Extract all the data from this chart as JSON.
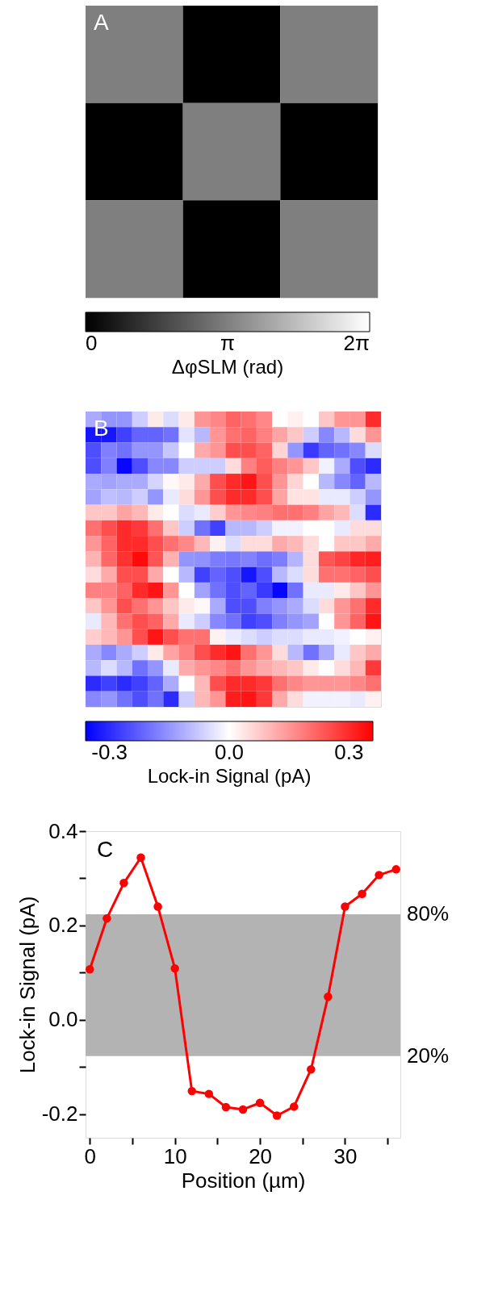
{
  "chart_data": [
    {
      "type": "heatmap",
      "annotations": [
        "A"
      ],
      "tick_labels": false,
      "categories": [
        null,
        null,
        null
      ],
      "y_categories": [
        null,
        null,
        null
      ],
      "cells": [
        [
          3.14,
          0,
          3.14
        ],
        [
          0,
          3.14,
          0
        ],
        [
          3.14,
          0,
          3.14
        ]
      ],
      "colors": [
        "#000000",
        "#ffffff"
      ],
      "clim": [
        0,
        6.283
      ],
      "cticks": [
        {
          "value": 0,
          "label": "0"
        },
        {
          "value": 3.1416,
          "label": "π"
        },
        {
          "value": 6.283,
          "label": "2π"
        }
      ],
      "clabel": "ΔφSLM (rad)"
    },
    {
      "type": "heatmap",
      "annotations": [
        "B"
      ],
      "tick_labels": false,
      "categories": [
        null,
        null,
        null,
        null,
        null,
        null,
        null,
        null,
        null,
        null,
        null,
        null,
        null,
        null,
        null,
        null,
        null,
        null,
        null
      ],
      "y_categories": [
        null,
        null,
        null,
        null,
        null,
        null,
        null,
        null,
        null,
        null,
        null,
        null,
        null,
        null,
        null,
        null,
        null,
        null,
        null
      ],
      "cells": [
        [
          -0.12,
          -0.15,
          -0.15,
          -0.07,
          0.03,
          -0.05,
          0.03,
          0.15,
          0.17,
          0.22,
          0.2,
          0.17,
          0,
          0.02,
          0,
          0.08,
          0.15,
          0.15,
          0.3
        ],
        [
          -0.33,
          -0.33,
          -0.27,
          -0.22,
          -0.22,
          -0.2,
          -0.04,
          -0.1,
          0.15,
          0.2,
          0.22,
          0.18,
          0.13,
          0.08,
          -0.07,
          -0.17,
          -0.1,
          0.05,
          0.15
        ],
        [
          -0.25,
          -0.18,
          -0.2,
          -0.15,
          -0.15,
          -0.08,
          0,
          0.12,
          0.15,
          0.25,
          0.25,
          0.22,
          0.06,
          -0.15,
          -0.28,
          -0.22,
          -0.2,
          -0.17,
          -0.05
        ],
        [
          -0.25,
          -0.18,
          -0.35,
          -0.25,
          -0.17,
          -0.17,
          -0.07,
          -0.07,
          -0.07,
          0.05,
          0.18,
          0.23,
          0.18,
          0.15,
          0.08,
          -0.02,
          -0.12,
          -0.25,
          -0.3
        ],
        [
          -0.12,
          -0.13,
          -0.12,
          -0.12,
          -0.06,
          0.01,
          0.03,
          0.12,
          0.25,
          0.3,
          0.33,
          0.25,
          0.15,
          0.06,
          0,
          -0.1,
          -0.17,
          -0.22,
          -0.1
        ],
        [
          -0.13,
          -0.09,
          -0.1,
          -0.07,
          -0.15,
          -0.03,
          0.05,
          0.15,
          0.25,
          0.3,
          0.3,
          0.25,
          0.13,
          0.04,
          0.04,
          -0.03,
          -0.03,
          -0.07,
          -0.15
        ],
        [
          0.08,
          0.08,
          0.13,
          0.1,
          0.03,
          0,
          -0.05,
          -0.03,
          0.07,
          0.15,
          0.17,
          0.18,
          0.2,
          0.2,
          0.18,
          0.13,
          0.1,
          -0.05,
          -0.3
        ],
        [
          0.2,
          0.25,
          0.3,
          0.28,
          0.2,
          0.08,
          -0.07,
          -0.2,
          -0.27,
          -0.1,
          -0.1,
          -0.07,
          -0.02,
          -0.02,
          0,
          0,
          -0.03,
          0.05,
          0.05
        ],
        [
          0.15,
          0.22,
          0.3,
          0.3,
          0.25,
          0.2,
          0.17,
          0.1,
          0.02,
          -0.05,
          0.05,
          0.05,
          0.12,
          0.1,
          0.05,
          0,
          0.08,
          0.08,
          0.12
        ],
        [
          0.107,
          0.215,
          0.29,
          0.344,
          0.24,
          0.109,
          -0.151,
          -0.157,
          -0.185,
          -0.19,
          -0.176,
          -0.203,
          -0.184,
          -0.105,
          0.049,
          0.24,
          0.267,
          0.307,
          0.319
        ],
        [
          0.05,
          0.12,
          0.25,
          0.25,
          0.12,
          0,
          -0.1,
          -0.27,
          -0.22,
          -0.25,
          -0.33,
          -0.25,
          -0.1,
          -0.05,
          0.05,
          0.2,
          0.2,
          0.22,
          0.25
        ],
        [
          0.18,
          0.18,
          0.22,
          0.3,
          0.33,
          0.15,
          0,
          -0.13,
          -0.2,
          -0.25,
          -0.22,
          -0.28,
          -0.35,
          -0.2,
          -0.03,
          -0.03,
          0.03,
          0.08,
          0.15
        ],
        [
          0.08,
          0.15,
          0.25,
          0.2,
          0.15,
          0.08,
          0.03,
          0.01,
          -0.12,
          -0.25,
          -0.25,
          -0.18,
          -0.15,
          -0.12,
          -0.05,
          0.05,
          0.15,
          0.2,
          0.3
        ],
        [
          -0.03,
          0.1,
          0.2,
          0.25,
          0.22,
          0.12,
          -0.03,
          -0.07,
          -0.17,
          -0.2,
          -0.27,
          -0.25,
          -0.18,
          -0.15,
          -0.13,
          0,
          0.15,
          0.22,
          0.33
        ],
        [
          0.07,
          0.1,
          0.15,
          0.25,
          0.33,
          0.25,
          0.2,
          0.2,
          0.02,
          -0.03,
          -0.05,
          -0.07,
          -0.05,
          -0.05,
          -0.03,
          -0.03,
          -0.02,
          0,
          0.02
        ],
        [
          -0.12,
          -0.17,
          -0.12,
          -0.07,
          0.03,
          0.13,
          0.18,
          0.25,
          0.3,
          0.33,
          0.2,
          0.15,
          0.05,
          -0.1,
          -0.2,
          -0.12,
          -0.03,
          0.08,
          0.12
        ],
        [
          -0.1,
          -0.05,
          -0.1,
          -0.2,
          -0.15,
          -0.03,
          0.12,
          0.15,
          0.17,
          0.2,
          0.15,
          0.12,
          0.1,
          0.08,
          0.03,
          0,
          0.05,
          0.1,
          0.28
        ],
        [
          -0.3,
          -0.27,
          -0.3,
          -0.27,
          -0.22,
          -0.12,
          0,
          0.1,
          0.25,
          0.3,
          0.3,
          0.28,
          0.2,
          0.17,
          0.15,
          0.15,
          0.15,
          0.17,
          0.2
        ],
        [
          -0.17,
          -0.15,
          -0.2,
          -0.25,
          -0.2,
          -0.3,
          -0.07,
          0.1,
          0.15,
          0.32,
          0.33,
          0.28,
          0.12,
          0.05,
          -0.02,
          -0.02,
          -0.02,
          -0.03,
          0.02
        ]
      ],
      "colors": [
        "#0000ff",
        "#ffffff",
        "#ff0000"
      ],
      "clim": [
        -0.36,
        0.36
      ],
      "cticks": [
        {
          "value": -0.3,
          "label": "-0.3"
        },
        {
          "value": 0,
          "label": "0.0"
        },
        {
          "value": 0.3,
          "label": "0.3"
        }
      ],
      "clabel": "Lock-in Signal (pA)"
    },
    {
      "type": "line",
      "annotations": [
        "C",
        {
          "text": "80%",
          "x": 36.5,
          "y": 0.224
        },
        {
          "text": "20%",
          "x": 36.5,
          "y": -0.077
        }
      ],
      "xlabel": "Position (µm)",
      "ylabel": "Lock-in Signal (pA)",
      "marker": "circle",
      "grid": false,
      "x": [
        0,
        2,
        4,
        6,
        8,
        10,
        12,
        14,
        16,
        18,
        20,
        22,
        24,
        26,
        28,
        30,
        32,
        34,
        36
      ],
      "series": [
        {
          "color": "#ff0000",
          "values": [
            0.107,
            0.215,
            0.29,
            0.344,
            0.24,
            0.109,
            -0.151,
            -0.157,
            -0.185,
            -0.19,
            -0.176,
            -0.203,
            -0.184,
            -0.105,
            0.049,
            0.24,
            0.267,
            0.307,
            0.319
          ]
        }
      ],
      "xlim": [
        -0.5,
        36.5
      ],
      "xticks": [
        0,
        {
          "value": 5,
          "label": null
        },
        10,
        {
          "value": 15,
          "label": null
        },
        20,
        {
          "value": 25,
          "label": null
        },
        30,
        {
          "value": 35,
          "label": null
        }
      ],
      "ylim": [
        -0.25,
        0.4
      ],
      "yticks": [
        -0.2,
        {
          "value": -0.1,
          "label": null
        },
        {
          "value": 0,
          "label": "0.0"
        },
        {
          "value": 0.1,
          "label": null
        },
        0.2,
        {
          "value": 0.3,
          "label": null
        },
        0.4
      ],
      "bands": [
        {
          "axis": "y",
          "from": -0.077,
          "to": 0.224,
          "color": "#b3b3b3"
        }
      ]
    }
  ]
}
